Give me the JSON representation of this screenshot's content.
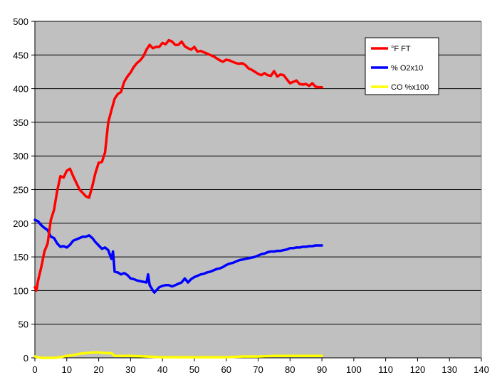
{
  "chart_data": {
    "type": "line",
    "title": "",
    "xlabel": "",
    "ylabel": "",
    "xlim": [
      0,
      140
    ],
    "ylim": [
      0,
      500
    ],
    "xticks": [
      0,
      10,
      20,
      30,
      40,
      50,
      60,
      70,
      80,
      90,
      100,
      110,
      120,
      130,
      140
    ],
    "yticks": [
      0,
      50,
      100,
      150,
      200,
      250,
      300,
      350,
      400,
      450,
      500
    ],
    "grid": "horizontal",
    "plot_background": "#c0c0c0",
    "legend_position": "top-right",
    "series": [
      {
        "name": "°F FT",
        "color": "#ff0000",
        "x": [
          0,
          0.5,
          1,
          2,
          3,
          4,
          5,
          6,
          7,
          8,
          9,
          10,
          11,
          12,
          13,
          14,
          15,
          16,
          17,
          18,
          19,
          20,
          21,
          22,
          23,
          24,
          25,
          26,
          27,
          28,
          29,
          30,
          31,
          32,
          33,
          34,
          35,
          36,
          37,
          38,
          39,
          40,
          41,
          42,
          43,
          44,
          45,
          46,
          47,
          48,
          49,
          50,
          51,
          52,
          53,
          54,
          55,
          56,
          57,
          58,
          59,
          60,
          61,
          62,
          63,
          64,
          65,
          66,
          67,
          68,
          69,
          70,
          71,
          72,
          73,
          74,
          75,
          76,
          77,
          78,
          79,
          80,
          81,
          82,
          83,
          84,
          85,
          86,
          87,
          88,
          89,
          90
        ],
        "values": [
          105,
          100,
          115,
          135,
          158,
          170,
          205,
          220,
          248,
          270,
          268,
          278,
          281,
          270,
          260,
          250,
          245,
          240,
          238,
          255,
          275,
          290,
          291,
          305,
          350,
          368,
          385,
          392,
          395,
          410,
          418,
          424,
          432,
          438,
          442,
          448,
          458,
          465,
          460,
          462,
          462,
          468,
          466,
          472,
          470,
          465,
          465,
          470,
          463,
          460,
          458,
          462,
          455,
          456,
          454,
          452,
          450,
          448,
          445,
          442,
          440,
          443,
          442,
          440,
          438,
          437,
          438,
          435,
          430,
          428,
          425,
          422,
          420,
          423,
          420,
          419,
          426,
          418,
          421,
          420,
          414,
          408,
          410,
          412,
          407,
          406,
          407,
          404,
          408,
          403,
          402,
          402
        ]
      },
      {
        "name": "% O2x10",
        "color": "#0000ff",
        "x": [
          0,
          1,
          2,
          3,
          4,
          5,
          6,
          7,
          8,
          9,
          10,
          11,
          12,
          13,
          14,
          15,
          16,
          17,
          18,
          19,
          20,
          21,
          22,
          23,
          24,
          24.5,
          25,
          26,
          27,
          28,
          29,
          30,
          31,
          32,
          33,
          34,
          35,
          35.5,
          36,
          37,
          37.5,
          38,
          39,
          40,
          41,
          42,
          43,
          44,
          45,
          46,
          47,
          48,
          49,
          50,
          51,
          52,
          53,
          54,
          55,
          56,
          57,
          58,
          59,
          60,
          61,
          62,
          63,
          64,
          65,
          66,
          67,
          68,
          69,
          70,
          71,
          72,
          73,
          74,
          75,
          76,
          77,
          78,
          79,
          80,
          81,
          82,
          83,
          84,
          85,
          86,
          87,
          88,
          89,
          90
        ],
        "values": [
          205,
          203,
          197,
          193,
          190,
          180,
          178,
          170,
          165,
          166,
          164,
          168,
          174,
          176,
          178,
          180,
          180,
          182,
          178,
          172,
          167,
          162,
          164,
          160,
          147,
          158,
          128,
          127,
          124,
          126,
          123,
          118,
          117,
          115,
          114,
          113,
          112,
          124,
          108,
          100,
          97,
          100,
          105,
          107,
          108,
          108,
          106,
          108,
          110,
          112,
          118,
          112,
          117,
          120,
          122,
          124,
          125,
          127,
          128,
          130,
          132,
          133,
          135,
          138,
          140,
          141,
          143,
          145,
          146,
          147,
          148,
          149,
          150,
          152,
          154,
          155,
          157,
          158,
          158,
          159,
          159,
          160,
          161,
          163,
          163,
          164,
          164,
          165,
          165,
          166,
          166,
          167,
          167,
          167
        ]
      },
      {
        "name": "CO %x100",
        "color": "#ffff00",
        "x": [
          0,
          2,
          4,
          6,
          8,
          10,
          12,
          14,
          16,
          18,
          20,
          22,
          24,
          25,
          30,
          35,
          40,
          50,
          60,
          65,
          70,
          75,
          80,
          85,
          90
        ],
        "values": [
          2,
          0,
          0,
          0,
          1,
          3,
          4,
          6,
          7,
          8,
          8,
          7,
          7,
          3,
          3,
          2,
          1,
          1,
          1,
          2,
          2,
          3,
          3,
          3,
          3
        ]
      }
    ]
  }
}
